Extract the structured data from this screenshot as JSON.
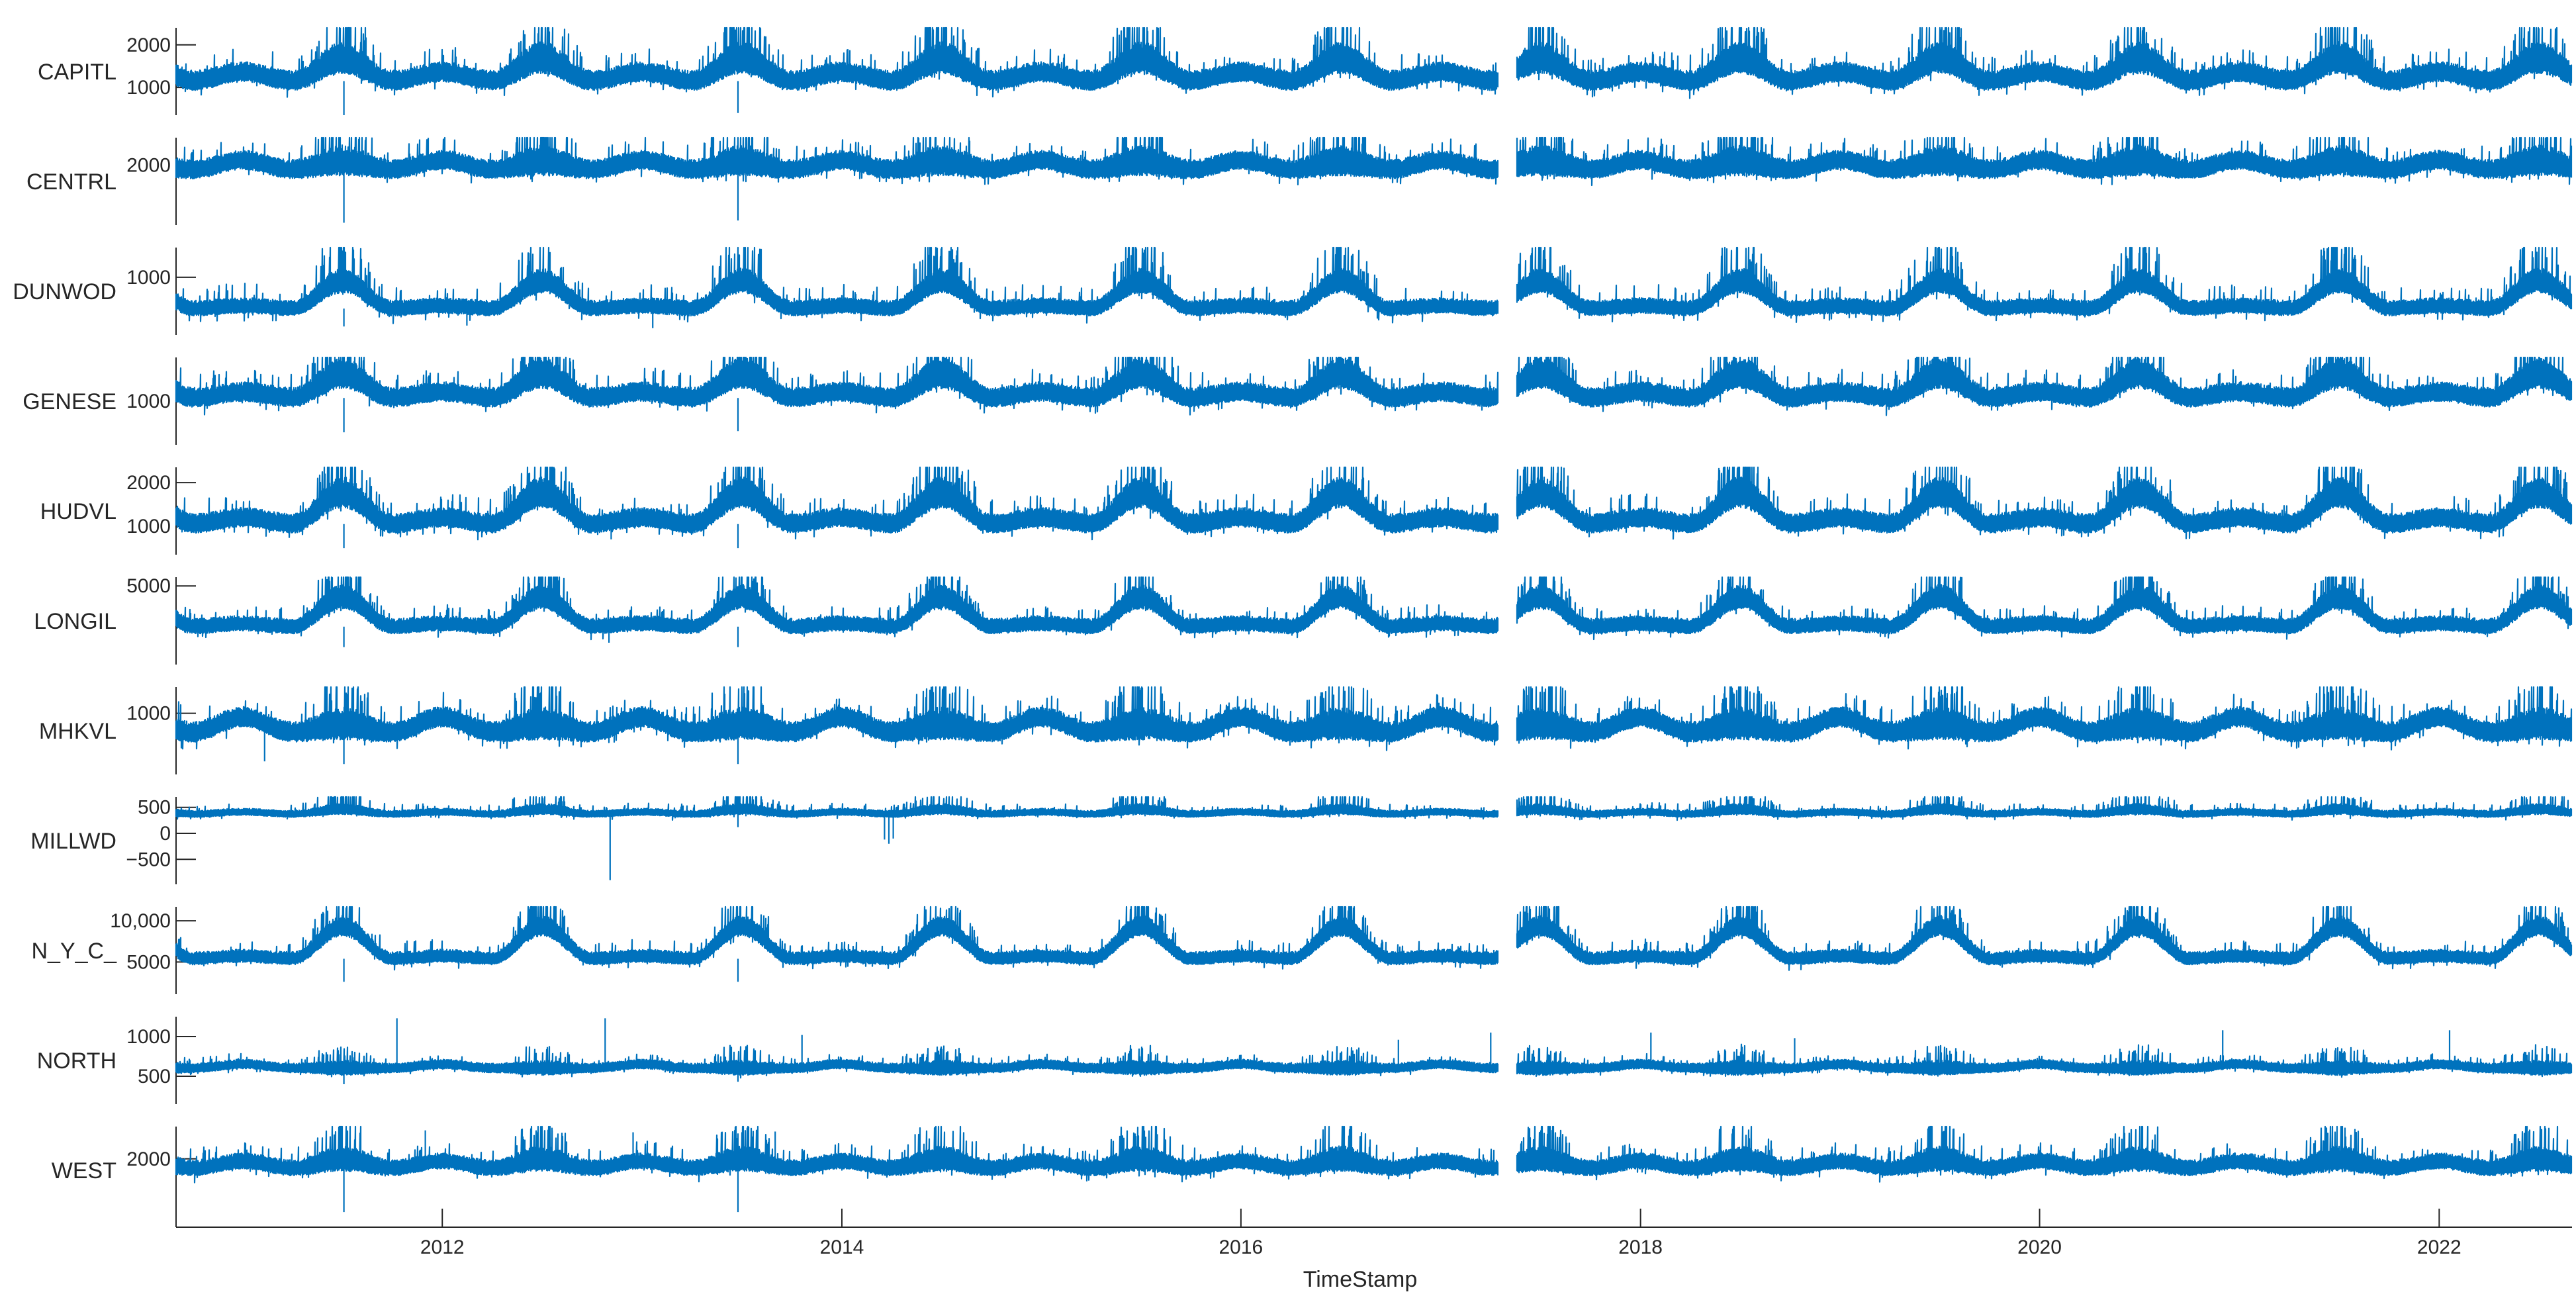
{
  "chart_data": {
    "type": "line",
    "layout": "stacked",
    "xlabel": "TimeStamp",
    "x_range": [
      "2010-09-01",
      "2022-09-01"
    ],
    "x_ticks": [
      "2012",
      "2014",
      "2016",
      "2018",
      "2020",
      "2022"
    ],
    "data_gap": [
      "2017-04-15",
      "2017-05-20"
    ],
    "line_color": "#0072BD",
    "grid": false,
    "series": [
      {
        "name": "CAPITL",
        "yticks": [
          {
            "value": 1000,
            "label": "1000"
          },
          {
            "value": 2000,
            "label": "2000"
          }
        ],
        "ylim": [
          350,
          2400
        ],
        "base": 1150,
        "winter": 200,
        "summer": 520,
        "noise": 180,
        "spike_scale": 420,
        "dips": [
          [
            "2011-07-05",
            350
          ],
          [
            "2013-06-25",
            400
          ]
        ]
      },
      {
        "name": "CENTRL",
        "yticks": [
          {
            "value": 2000,
            "label": "2000"
          }
        ],
        "ylim": [
          700,
          2600
        ],
        "base": 1900,
        "winter": 200,
        "summer": 180,
        "noise": 160,
        "spike_scale": 380,
        "dips": [
          [
            "2011-07-05",
            750
          ],
          [
            "2013-06-25",
            800
          ]
        ]
      },
      {
        "name": "DUNWOD",
        "yticks": [
          {
            "value": 1000,
            "label": "1000"
          }
        ],
        "ylim": [
          320,
          1350
        ],
        "base": 630,
        "winter": 30,
        "summer": 320,
        "noise": 70,
        "spike_scale": 200,
        "dips": [
          [
            "2011-07-05",
            420
          ],
          [
            "2012-02-15",
            430
          ],
          [
            "2013-01-20",
            400
          ]
        ]
      },
      {
        "name": "GENESE",
        "yticks": [
          {
            "value": 1000,
            "label": "1000"
          }
        ],
        "ylim": [
          300,
          1700
        ],
        "base": 1050,
        "winter": 90,
        "summer": 380,
        "noise": 120,
        "spike_scale": 280,
        "dips": [
          [
            "2011-07-05",
            500
          ],
          [
            "2013-06-25",
            520
          ]
        ]
      },
      {
        "name": "HUDVL",
        "yticks": [
          {
            "value": 1000,
            "label": "1000"
          },
          {
            "value": 2000,
            "label": "2000"
          }
        ],
        "ylim": [
          350,
          2350
        ],
        "base": 1050,
        "winter": 140,
        "summer": 700,
        "noise": 170,
        "spike_scale": 400,
        "dips": [
          [
            "2011-07-05",
            500
          ],
          [
            "2013-06-25",
            500
          ],
          [
            "2012-11-05",
            700
          ]
        ]
      },
      {
        "name": "LONGIL",
        "yticks": [
          {
            "value": 5000,
            "label": "5000"
          }
        ],
        "ylim": [
          -400,
          5600
        ],
        "base": 2200,
        "winter": 200,
        "summer": 2000,
        "noise": 400,
        "spike_scale": 900,
        "dips": [
          [
            "2011-07-05",
            800
          ],
          [
            "2012-11-01",
            1100
          ],
          [
            "2013-06-25",
            800
          ]
        ]
      },
      {
        "name": "MHKVL",
        "yticks": [
          {
            "value": 1000,
            "label": "1000"
          }
        ],
        "ylim": [
          300,
          1300
        ],
        "base": 780,
        "winter": 170,
        "summer": 90,
        "noise": 90,
        "spike_scale": 200,
        "dips": [
          [
            "2011-07-05",
            420
          ],
          [
            "2011-02-10",
            450
          ],
          [
            "2013-06-25",
            420
          ]
        ]
      },
      {
        "name": "MILLWD",
        "yticks": [
          {
            "value": -500,
            "label": "−500"
          },
          {
            "value": 0,
            "label": "0"
          },
          {
            "value": 500,
            "label": "500"
          }
        ],
        "ylim": [
          -980,
          700
        ],
        "base": 370,
        "winter": 40,
        "summer": 90,
        "noise": 50,
        "spike_scale": 140,
        "dips": [
          [
            "2012-11-03",
            -900
          ],
          [
            "2014-03-20",
            -120
          ],
          [
            "2014-03-28",
            -200
          ],
          [
            "2014-04-05",
            -100
          ],
          [
            "2013-06-25",
            120
          ]
        ]
      },
      {
        "name": "N_Y_C_",
        "yticks": [
          {
            "value": 5000,
            "label": "5000"
          },
          {
            "value": 10000,
            "label": "10,000"
          }
        ],
        "ylim": [
          1100,
          11700
        ],
        "base": 5400,
        "winter": 300,
        "summer": 3900,
        "noise": 600,
        "spike_scale": 1500,
        "dips": [
          [
            "2011-07-05",
            2600
          ],
          [
            "2013-06-25",
            2600
          ],
          [
            "2012-11-01",
            4300
          ]
        ]
      },
      {
        "name": "NORTH",
        "yticks": [
          {
            "value": 500,
            "label": "500"
          },
          {
            "value": 1000,
            "label": "1000"
          }
        ],
        "ylim": [
          150,
          1250
        ],
        "base": 600,
        "winter": 50,
        "summer": 0,
        "noise": 45,
        "spike_scale": 90,
        "dips": [
          [
            "2011-07-05",
            400
          ],
          [
            "2013-06-25",
            430
          ]
        ],
        "spikes": [
          [
            "2011-10-10",
            1230
          ],
          [
            "2012-10-25",
            1230
          ],
          [
            "2013-10-20",
            1020
          ],
          [
            "2017-04-02",
            1050
          ],
          [
            "2018-01-20",
            1050
          ],
          [
            "2020-12-01",
            1080
          ],
          [
            "2022-01-20",
            1080
          ],
          [
            "2016-10-15",
            960
          ],
          [
            "2018-10-10",
            980
          ]
        ]
      },
      {
        "name": "WEST",
        "yticks": [
          {
            "value": 2000,
            "label": "2000"
          }
        ],
        "ylim": [
          550,
          2850
        ],
        "base": 1750,
        "winter": 180,
        "summer": 230,
        "noise": 160,
        "spike_scale": 380,
        "dips": [
          [
            "2011-07-05",
            600
          ],
          [
            "2013-06-25",
            600
          ]
        ],
        "spikes": [
          [
            "2011-12-01",
            2750
          ],
          [
            "2012-07-20",
            2750
          ],
          [
            "2012-12-15",
            2700
          ],
          [
            "2013-09-01",
            2720
          ],
          [
            "2014-05-15",
            2650
          ],
          [
            "2015-08-01",
            2650
          ]
        ]
      }
    ]
  }
}
